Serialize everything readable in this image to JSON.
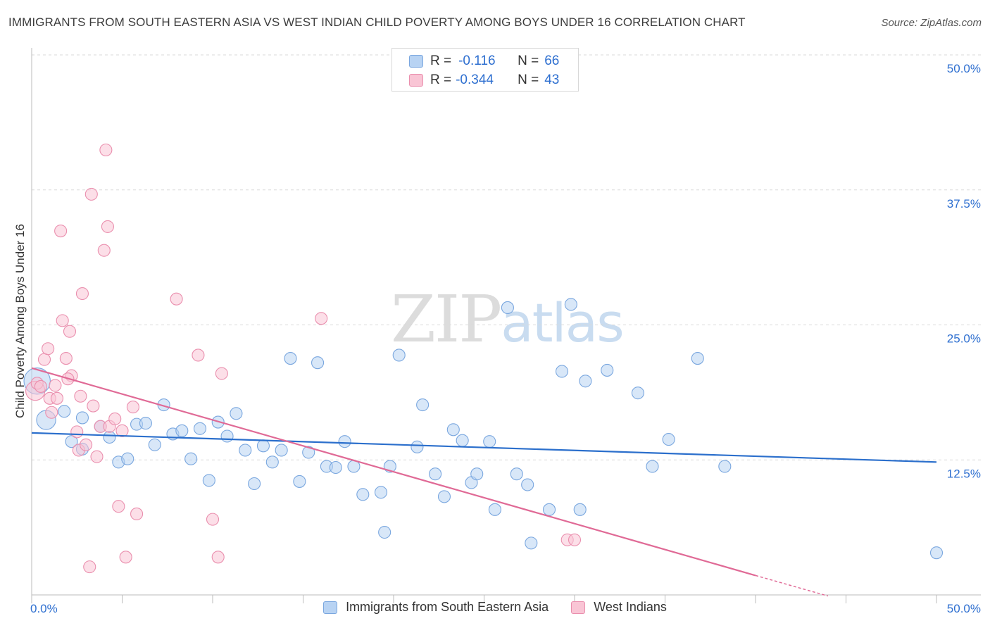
{
  "title": "IMMIGRANTS FROM SOUTH EASTERN ASIA VS WEST INDIAN CHILD POVERTY AMONG BOYS UNDER 16 CORRELATION CHART",
  "source": "Source: ZipAtlas.com",
  "watermark": {
    "zip": "ZIP",
    "atlas": "atlas"
  },
  "legend": {
    "r_label": "R =",
    "n_label": "N =",
    "rows": [
      {
        "r": "-0.116",
        "n": "66"
      },
      {
        "r": "-0.344",
        "n": "43"
      }
    ]
  },
  "colors": {
    "blue_fill": "#b8d3f3",
    "blue_stroke": "#7aa7df",
    "blue_line": "#2b6fcc",
    "pink_fill": "#f9c5d5",
    "pink_stroke": "#ea8fae",
    "pink_line": "#e06a96",
    "tick_label": "#2e6fd0"
  },
  "chart_data": {
    "type": "scatter",
    "title": "IMMIGRANTS FROM SOUTH EASTERN ASIA VS WEST INDIAN CHILD POVERTY AMONG BOYS UNDER 16 CORRELATION CHART",
    "xlabel": "",
    "ylabel": "Child Poverty Among Boys Under 16",
    "xlim": [
      0,
      50
    ],
    "ylim": [
      0,
      50
    ],
    "x_tick_labels": [
      "0.0%",
      "50.0%"
    ],
    "y_ticks": [
      12.5,
      25.0,
      37.5,
      50.0
    ],
    "y_tick_labels": [
      "12.5%",
      "25.0%",
      "37.5%",
      "50.0%"
    ],
    "grid": true,
    "series": [
      {
        "name": "Immigrants from South Eastern Asia",
        "color": "#7aa7df",
        "trend": {
          "x": [
            0,
            50
          ],
          "y": [
            15.0,
            12.3
          ]
        },
        "points": [
          [
            0.3,
            19.8,
            2.2
          ],
          [
            0.8,
            16.2,
            1.6
          ],
          [
            1.8,
            17.0,
            1.0
          ],
          [
            2.8,
            16.4,
            1.0
          ],
          [
            2.2,
            14.2,
            1.0
          ],
          [
            2.8,
            13.5,
            1.0
          ],
          [
            3.8,
            15.6,
            1.0
          ],
          [
            4.3,
            14.6,
            1.0
          ],
          [
            4.8,
            12.3,
            1.0
          ],
          [
            5.3,
            12.6,
            1.0
          ],
          [
            5.8,
            15.8,
            1.0
          ],
          [
            6.3,
            15.9,
            1.0
          ],
          [
            6.8,
            13.9,
            1.0
          ],
          [
            7.3,
            17.6,
            1.0
          ],
          [
            7.8,
            14.9,
            1.0
          ],
          [
            8.3,
            15.2,
            1.0
          ],
          [
            8.8,
            12.6,
            1.0
          ],
          [
            9.3,
            15.4,
            1.0
          ],
          [
            9.8,
            10.6,
            1.0
          ],
          [
            10.3,
            16.0,
            1.0
          ],
          [
            10.8,
            14.7,
            1.0
          ],
          [
            11.3,
            16.8,
            1.0
          ],
          [
            11.8,
            13.4,
            1.0
          ],
          [
            12.3,
            10.3,
            1.0
          ],
          [
            12.8,
            13.8,
            1.0
          ],
          [
            13.3,
            12.3,
            1.0
          ],
          [
            13.8,
            13.4,
            1.0
          ],
          [
            14.3,
            21.9,
            1.0
          ],
          [
            14.8,
            10.5,
            1.0
          ],
          [
            15.3,
            13.2,
            1.0
          ],
          [
            15.8,
            21.5,
            1.0
          ],
          [
            16.3,
            11.9,
            1.0
          ],
          [
            16.8,
            11.8,
            1.0
          ],
          [
            17.3,
            14.2,
            1.0
          ],
          [
            17.8,
            11.9,
            1.0
          ],
          [
            18.3,
            9.3,
            1.0
          ],
          [
            19.3,
            9.5,
            1.0
          ],
          [
            19.5,
            5.8,
            1.0
          ],
          [
            19.8,
            11.9,
            1.0
          ],
          [
            20.3,
            22.2,
            1.0
          ],
          [
            21.3,
            13.7,
            1.0
          ],
          [
            21.6,
            17.6,
            1.0
          ],
          [
            22.3,
            11.2,
            1.0
          ],
          [
            22.8,
            9.1,
            1.0
          ],
          [
            23.3,
            15.3,
            1.0
          ],
          [
            23.8,
            14.3,
            1.0
          ],
          [
            24.3,
            10.4,
            1.0
          ],
          [
            24.6,
            11.2,
            1.0
          ],
          [
            25.3,
            14.2,
            1.0
          ],
          [
            25.6,
            7.9,
            1.0
          ],
          [
            26.3,
            26.6,
            1.0
          ],
          [
            26.8,
            11.2,
            1.0
          ],
          [
            27.4,
            10.2,
            1.0
          ],
          [
            27.6,
            4.8,
            1.0
          ],
          [
            28.6,
            7.9,
            1.0
          ],
          [
            29.3,
            20.7,
            1.0
          ],
          [
            29.8,
            26.9,
            1.0
          ],
          [
            30.3,
            7.9,
            1.0
          ],
          [
            30.6,
            19.8,
            1.0
          ],
          [
            31.8,
            20.8,
            1.0
          ],
          [
            33.5,
            18.7,
            1.0
          ],
          [
            34.3,
            11.9,
            1.0
          ],
          [
            35.2,
            14.4,
            1.0
          ],
          [
            36.8,
            21.9,
            1.0
          ],
          [
            38.3,
            11.9,
            1.0
          ],
          [
            50.0,
            3.9,
            1.0
          ]
        ]
      },
      {
        "name": "West Indians",
        "color": "#ea8fae",
        "trend": {
          "x": [
            0,
            40
          ],
          "y": [
            21.0,
            1.8
          ]
        },
        "trend_dashed": {
          "x": [
            40,
            44
          ],
          "y": [
            1.8,
            -0.1
          ]
        },
        "points": [
          [
            0.2,
            18.9,
            1.6
          ],
          [
            0.3,
            19.6,
            1.0
          ],
          [
            0.5,
            19.3,
            1.0
          ],
          [
            0.7,
            21.8,
            1.0
          ],
          [
            0.9,
            22.8,
            1.0
          ],
          [
            1.0,
            18.2,
            1.0
          ],
          [
            1.1,
            16.9,
            1.0
          ],
          [
            1.4,
            18.2,
            1.0
          ],
          [
            1.6,
            33.7,
            1.0
          ],
          [
            1.7,
            25.4,
            1.0
          ],
          [
            1.9,
            21.9,
            1.0
          ],
          [
            2.1,
            24.4,
            1.0
          ],
          [
            2.2,
            20.3,
            1.0
          ],
          [
            2.5,
            15.1,
            1.0
          ],
          [
            2.6,
            13.4,
            1.0
          ],
          [
            2.7,
            18.4,
            1.0
          ],
          [
            2.8,
            27.9,
            1.0
          ],
          [
            3.0,
            13.9,
            1.0
          ],
          [
            3.2,
            2.6,
            1.0
          ],
          [
            3.3,
            37.1,
            1.0
          ],
          [
            3.4,
            17.5,
            1.0
          ],
          [
            3.6,
            12.8,
            1.0
          ],
          [
            3.8,
            15.6,
            1.0
          ],
          [
            4.0,
            31.9,
            1.0
          ],
          [
            4.2,
            34.1,
            1.0
          ],
          [
            4.3,
            15.6,
            1.0
          ],
          [
            4.6,
            16.3,
            1.0
          ],
          [
            4.8,
            8.2,
            1.0
          ],
          [
            5.0,
            15.2,
            1.0
          ],
          [
            5.2,
            3.5,
            1.0
          ],
          [
            5.6,
            17.4,
            1.0
          ],
          [
            5.8,
            7.5,
            1.0
          ],
          [
            8.0,
            27.4,
            1.0
          ],
          [
            9.2,
            22.2,
            1.0
          ],
          [
            10.0,
            7.0,
            1.0
          ],
          [
            10.3,
            3.5,
            1.0
          ],
          [
            10.5,
            20.5,
            1.0
          ],
          [
            16.0,
            25.6,
            1.0
          ],
          [
            29.6,
            5.1,
            1.0
          ],
          [
            30.0,
            5.1,
            1.0
          ],
          [
            2.0,
            20.0,
            1.0
          ],
          [
            1.3,
            19.4,
            1.0
          ],
          [
            4.1,
            41.2,
            1.0
          ]
        ]
      }
    ]
  }
}
